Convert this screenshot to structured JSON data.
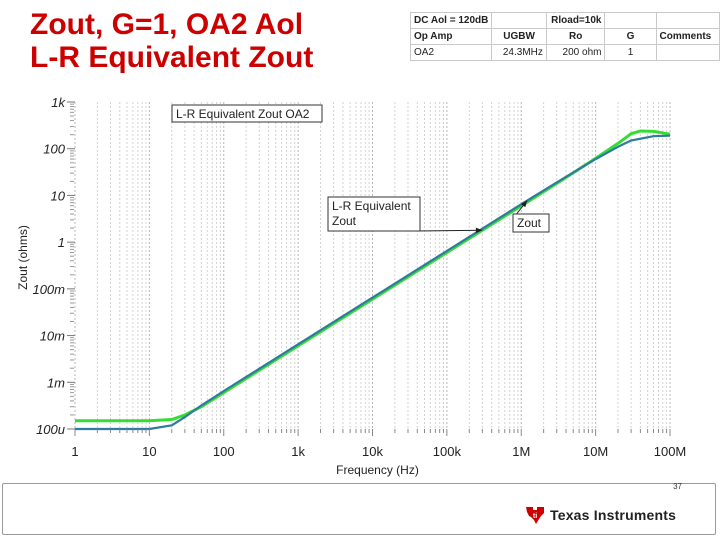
{
  "slide": {
    "title_lines": [
      "Zout, G=1, OA2 Aol",
      "L-R Equivalent Zout"
    ],
    "page_number": "37",
    "logo_text": "Texas Instruments",
    "colors": {
      "title": "#cc0000",
      "logo": "#cc0000"
    }
  },
  "param_table": {
    "rows": [
      [
        "DC Aol = 120dB",
        "",
        "Rload=10k",
        "",
        ""
      ],
      [
        "Op Amp",
        "UGBW",
        "Ro",
        "G",
        "Comments"
      ],
      [
        "OA2",
        "24.3MHz",
        "200 ohm",
        "1",
        ""
      ]
    ]
  },
  "chart_data": {
    "type": "line",
    "title": "L-R Equivalent Zout OA2",
    "xlabel": "Frequency (Hz)",
    "ylabel": "Zout (ohms)",
    "x_scale": "log",
    "y_scale": "log",
    "xlim": [
      1,
      100000000
    ],
    "ylim": [
      0.0001,
      1000
    ],
    "x_ticks": [
      {
        "value": 1,
        "label": "1"
      },
      {
        "value": 10,
        "label": "10"
      },
      {
        "value": 100,
        "label": "100"
      },
      {
        "value": 1000,
        "label": "1k"
      },
      {
        "value": 10000,
        "label": "10k"
      },
      {
        "value": 100000,
        "label": "100k"
      },
      {
        "value": 1000000,
        "label": "1M"
      },
      {
        "value": 10000000,
        "label": "10M"
      },
      {
        "value": 100000000,
        "label": "100M"
      }
    ],
    "y_ticks": [
      {
        "value": 0.0001,
        "label": "100u"
      },
      {
        "value": 0.001,
        "label": "1m"
      },
      {
        "value": 0.01,
        "label": "10m"
      },
      {
        "value": 0.1,
        "label": "100m"
      },
      {
        "value": 1,
        "label": "1"
      },
      {
        "value": 10,
        "label": "10"
      },
      {
        "value": 100,
        "label": "100"
      },
      {
        "value": 1000,
        "label": "1k"
      }
    ],
    "grid": "vertical",
    "series": [
      {
        "name": "Zout",
        "color": "#2f7a9e",
        "x": [
          1,
          10,
          20,
          30,
          50,
          100,
          1000,
          10000,
          100000,
          1000000,
          3000000,
          10000000,
          20000000,
          30000000,
          60000000,
          100000000
        ],
        "y": [
          0.0001,
          0.0001,
          0.00012,
          0.00018,
          0.00032,
          0.00065,
          0.0065,
          0.065,
          0.65,
          6.5,
          19,
          60,
          110,
          150,
          185,
          190
        ]
      },
      {
        "name": "L-R Equivalent Zout",
        "color": "#33dd33",
        "x": [
          1,
          10,
          20,
          30,
          50,
          100,
          1000,
          10000,
          100000,
          1000000,
          3000000,
          10000000,
          20000000,
          30000000,
          40000000,
          60000000,
          100000000
        ],
        "y": [
          0.00015,
          0.00015,
          0.00016,
          0.0002,
          0.0003,
          0.0006,
          0.006,
          0.06,
          0.6,
          6,
          18,
          62,
          130,
          210,
          240,
          235,
          205
        ]
      }
    ],
    "annotations": [
      {
        "text": "L-R Equivalent Zout",
        "target": "L-R Equivalent Zout",
        "at_x": 300000
      },
      {
        "text": "Zout",
        "target": "Zout",
        "at_x": 1200000
      }
    ]
  }
}
